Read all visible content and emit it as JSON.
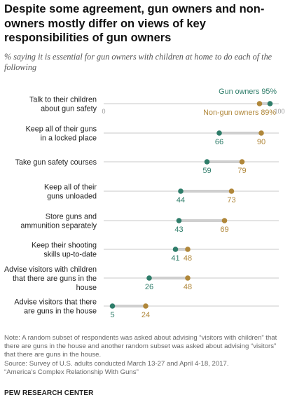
{
  "title": "Despite some agreement, gun owners and non-owners mostly differ on views of key responsibilities of gun owners",
  "subtitle": "% saying it is essential for gun owners with children at home to do each of the following",
  "colors": {
    "gun_owners": "#2f7d6a",
    "non_gun_owners": "#b0873a",
    "connector": "#cfcfcf",
    "axis": "#b8b8b8",
    "text": "#333333"
  },
  "chart_data": {
    "type": "dot",
    "xlim": [
      0,
      100
    ],
    "axis_ticks": [
      "0",
      "100"
    ],
    "series": [
      {
        "name": "Gun owners",
        "key": "gun_owners",
        "legend_label": "Gun owners 95%"
      },
      {
        "name": "Non-gun owners",
        "key": "non_gun_owners",
        "legend_label": "Non-gun owners 89%"
      }
    ],
    "categories": [
      {
        "label_lines": [
          "Talk to their children",
          "about gun safety"
        ],
        "gun_owners": 95,
        "non_gun_owners": 89,
        "show_values": false
      },
      {
        "label_lines": [
          "Keep all of their guns",
          "in a locked place"
        ],
        "gun_owners": 66,
        "non_gun_owners": 90,
        "show_values": true
      },
      {
        "label_lines": [
          "Take gun safety courses"
        ],
        "gun_owners": 59,
        "non_gun_owners": 79,
        "show_values": true
      },
      {
        "label_lines": [
          "Keep all of their",
          "guns unloaded"
        ],
        "gun_owners": 44,
        "non_gun_owners": 73,
        "show_values": true
      },
      {
        "label_lines": [
          "Store guns and",
          "ammunition separately"
        ],
        "gun_owners": 43,
        "non_gun_owners": 69,
        "show_values": true
      },
      {
        "label_lines": [
          "Keep their shooting",
          "skills up-to-date"
        ],
        "gun_owners": 41,
        "non_gun_owners": 48,
        "show_values": true
      },
      {
        "label_lines": [
          "Advise visitors with children",
          "that there are guns in the",
          "house"
        ],
        "gun_owners": 26,
        "non_gun_owners": 48,
        "show_values": true
      },
      {
        "label_lines": [
          "Advise visitors that there",
          "are guns in the house"
        ],
        "gun_owners": 5,
        "non_gun_owners": 24,
        "show_values": true
      }
    ]
  },
  "note": "Note: A random subset of respondents was asked about advising “visitors with children” that there are guns in the house and another random subset was asked about advising “visitors” that there are guns in the house.",
  "source": "Source: Survey of U.S. adults conducted March 13-27 and April 4-18, 2017.",
  "report": "“America’s Complex Relationship With Guns”",
  "footer": "PEW RESEARCH CENTER"
}
